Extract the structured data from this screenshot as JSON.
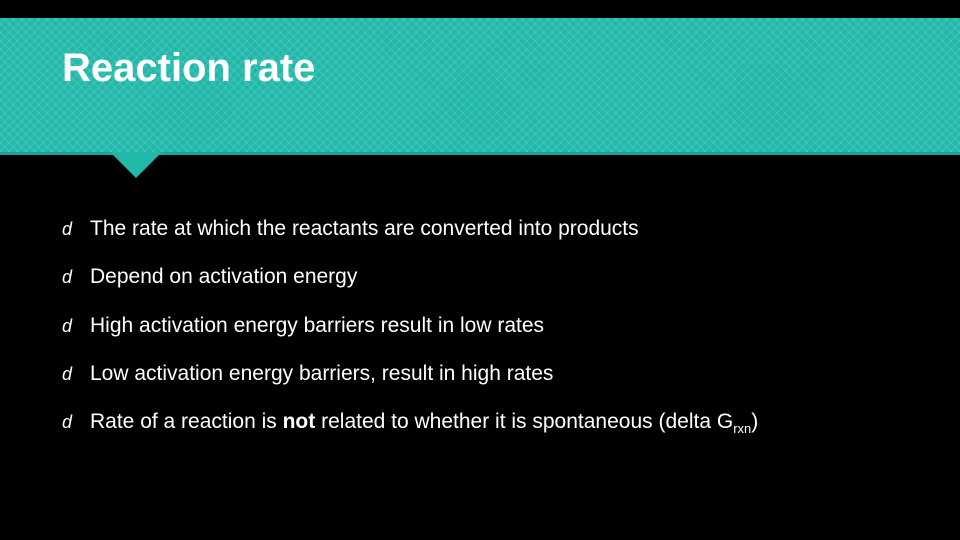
{
  "slide": {
    "title": "Reaction rate",
    "header_bg_color": "#21b8a9",
    "header_text_color": "#ffffff",
    "body_bg_color": "#000000",
    "body_text_color": "#ffffff",
    "title_fontsize": 40,
    "bullet_fontsize": 21,
    "bullet_glyph": "d",
    "bullets": [
      {
        "text": "The rate at which the reactants are converted into products"
      },
      {
        "text": "Depend on activation energy"
      },
      {
        "text": "High activation energy barriers result in low rates"
      },
      {
        "text": "Low activation energy barriers, result in high rates"
      },
      {
        "prefix": "Rate of a reaction is ",
        "bold": "not",
        "middle": " related to whether it is spontaneous (delta G",
        "sub": "rxn",
        "suffix": ")"
      }
    ]
  }
}
